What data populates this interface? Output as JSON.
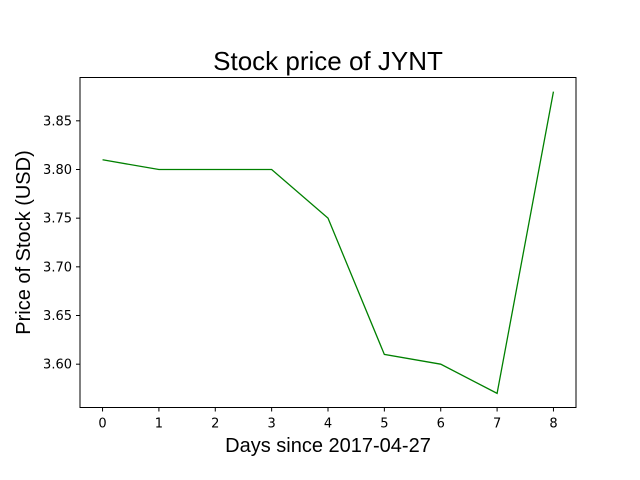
{
  "chart_data": {
    "type": "line",
    "title": "Stock price of JYNT",
    "xlabel": "Days since 2017-04-27",
    "ylabel": "Price of Stock (USD)",
    "x": [
      0,
      1,
      2,
      3,
      4,
      5,
      6,
      7,
      8
    ],
    "series": [
      {
        "values": [
          3.81,
          3.8,
          3.8,
          3.8,
          3.75,
          3.61,
          3.6,
          3.57,
          3.88
        ],
        "color": "#008000"
      }
    ],
    "xlim": [
      -0.4,
      8.4
    ],
    "ylim": [
      3.5555,
      3.8945
    ],
    "xticks": [
      0,
      1,
      2,
      3,
      4,
      5,
      6,
      7,
      8
    ],
    "yticks": [
      3.6,
      3.65,
      3.7,
      3.75,
      3.8,
      3.85
    ],
    "ytick_labels": [
      "3.60",
      "3.65",
      "3.70",
      "3.75",
      "3.80",
      "3.85"
    ],
    "grid": false,
    "legend": "none"
  }
}
